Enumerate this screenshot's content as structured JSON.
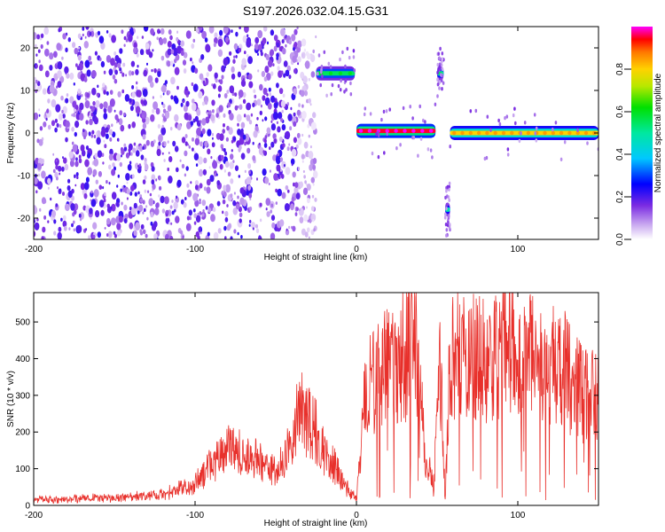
{
  "title": "S197.2026.032.04.15.G31",
  "chart_data": [
    {
      "type": "heatmap",
      "xlabel": "Height of straight line (km)",
      "ylabel": "Frequency (Hz)",
      "xlim": [
        -200,
        150
      ],
      "ylim": [
        -25,
        25
      ],
      "x_ticks": [
        "-200",
        "-100",
        "0",
        "100"
      ],
      "y_ticks": [
        "-20",
        "-10",
        "0",
        "10",
        "20"
      ],
      "colorbar": {
        "label": "Normalized spectral amplitude",
        "range": [
          0,
          1
        ],
        "ticks": [
          "0.0",
          "0.2",
          "0.4",
          "0.6",
          "0.8"
        ]
      },
      "features": [
        {
          "name": "noise-region",
          "x_range": [
            -200,
            -25
          ],
          "amplitude": 0.15
        },
        {
          "name": "tone-upper-a",
          "x_range": [
            -25,
            -1
          ],
          "freq": 14,
          "amplitude": 0.55
        },
        {
          "name": "tone-upper-b",
          "x_range": [
            50,
            54
          ],
          "freq": 14,
          "amplitude": 0.5
        },
        {
          "name": "carrier-a",
          "x_range": [
            0,
            49
          ],
          "freq": 0.5,
          "amplitude": 0.95
        },
        {
          "name": "tone-lower",
          "x_range": [
            55,
            58
          ],
          "freq": -18,
          "amplitude": 0.45
        },
        {
          "name": "carrier-b",
          "x_range": [
            58,
            150
          ],
          "freq": 0,
          "amplitude": 0.8
        }
      ]
    },
    {
      "type": "line",
      "xlabel": "Height of straight line (km)",
      "ylabel": "SNR (10 * v/v)",
      "xlim": [
        -200,
        150
      ],
      "ylim": [
        0,
        580
      ],
      "x_ticks": [
        "-200",
        "-100",
        "0",
        "100"
      ],
      "y_ticks": [
        "0",
        "100",
        "200",
        "300",
        "400",
        "500"
      ],
      "color": "#e8302b",
      "series": [
        {
          "name": "SNR",
          "x": [
            -200,
            -150,
            -120,
            -100,
            -90,
            -80,
            -75,
            -70,
            -60,
            -50,
            -40,
            -35,
            -30,
            -25,
            -20,
            -15,
            -10,
            -5,
            0,
            5,
            10,
            20,
            30,
            38,
            42,
            45,
            48,
            50,
            52,
            55,
            58,
            62,
            70,
            80,
            90,
            94,
            100,
            110,
            120,
            130,
            140,
            150
          ],
          "y": [
            15,
            20,
            30,
            60,
            110,
            150,
            160,
            140,
            120,
            90,
            180,
            260,
            240,
            200,
            150,
            120,
            80,
            40,
            20,
            300,
            330,
            380,
            420,
            430,
            150,
            100,
            40,
            250,
            380,
            20,
            400,
            420,
            410,
            400,
            420,
            460,
            380,
            400,
            390,
            360,
            300,
            300
          ]
        }
      ]
    }
  ]
}
